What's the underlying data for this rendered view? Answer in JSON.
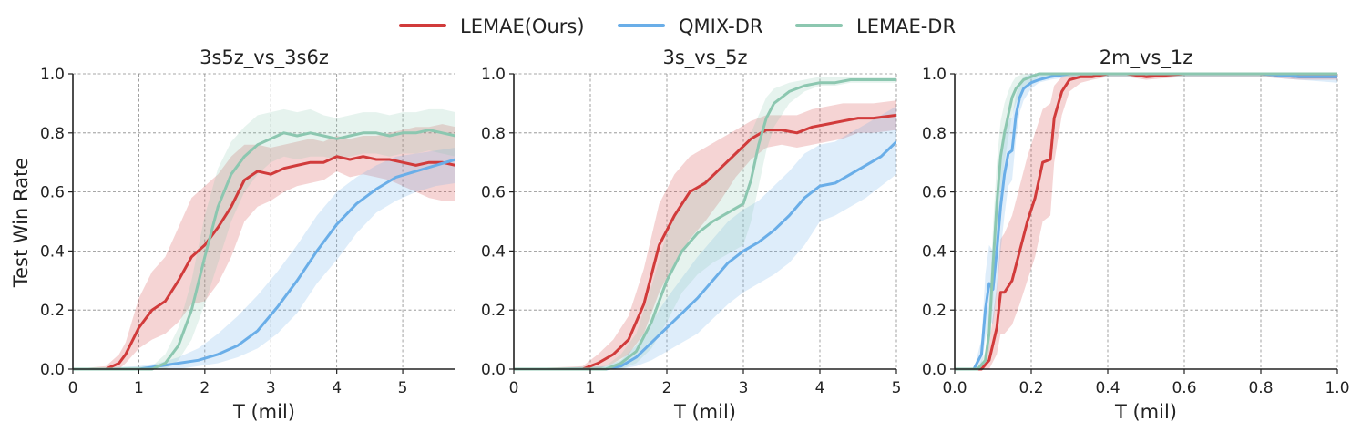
{
  "colors": {
    "LEMAE(Ours)": "#d13b3b",
    "QMIX-DR": "#6aaee8",
    "LEMAE-DR": "#8cc7b0"
  },
  "legend": [
    {
      "label": "LEMAE(Ours)",
      "color": "#d13b3b"
    },
    {
      "label": "QMIX-DR",
      "color": "#6aaee8"
    },
    {
      "label": "LEMAE-DR",
      "color": "#8cc7b0"
    }
  ],
  "chart_data": [
    {
      "type": "line",
      "title": "3s5z_vs_3s6z",
      "xlabel": "T (mil)",
      "ylabel": "Test Win Rate",
      "xlim": [
        0,
        5.8
      ],
      "ylim": [
        0,
        1.0
      ],
      "xticks": [
        0,
        1,
        2,
        3,
        4,
        5
      ],
      "xtick_labels": [
        "0",
        "1",
        "2",
        "3",
        "4",
        "5"
      ],
      "yticks": [
        0.0,
        0.2,
        0.4,
        0.6,
        0.8,
        1.0
      ],
      "ytick_labels": [
        "0.0",
        "0.2",
        "0.4",
        "0.6",
        "0.8",
        "1.0"
      ],
      "grid": true,
      "series": [
        {
          "name": "LEMAE(Ours)",
          "x": [
            0,
            0.5,
            0.7,
            0.8,
            1.0,
            1.2,
            1.4,
            1.6,
            1.8,
            2.0,
            2.2,
            2.4,
            2.6,
            2.8,
            3.0,
            3.2,
            3.4,
            3.6,
            3.8,
            4.0,
            4.2,
            4.4,
            4.6,
            4.8,
            5.0,
            5.2,
            5.4,
            5.6,
            5.8
          ],
          "mean": [
            0.0,
            0.0,
            0.02,
            0.05,
            0.14,
            0.2,
            0.23,
            0.3,
            0.38,
            0.42,
            0.48,
            0.55,
            0.64,
            0.67,
            0.66,
            0.68,
            0.69,
            0.7,
            0.7,
            0.72,
            0.71,
            0.72,
            0.71,
            0.71,
            0.7,
            0.69,
            0.7,
            0.7,
            0.69
          ],
          "lower": [
            0.0,
            0.0,
            0.0,
            0.02,
            0.07,
            0.1,
            0.12,
            0.16,
            0.22,
            0.23,
            0.29,
            0.38,
            0.5,
            0.55,
            0.57,
            0.6,
            0.62,
            0.63,
            0.64,
            0.67,
            0.65,
            0.66,
            0.65,
            0.64,
            0.62,
            0.6,
            0.58,
            0.57,
            0.57
          ],
          "upper": [
            0.0,
            0.01,
            0.05,
            0.09,
            0.24,
            0.33,
            0.38,
            0.48,
            0.58,
            0.62,
            0.66,
            0.72,
            0.76,
            0.76,
            0.75,
            0.76,
            0.77,
            0.78,
            0.77,
            0.79,
            0.78,
            0.79,
            0.79,
            0.8,
            0.81,
            0.82,
            0.82,
            0.83,
            0.82
          ]
        },
        {
          "name": "QMIX-DR",
          "x": [
            0,
            1.0,
            1.3,
            1.6,
            1.9,
            2.2,
            2.5,
            2.8,
            3.1,
            3.4,
            3.7,
            4.0,
            4.3,
            4.6,
            4.9,
            5.2,
            5.5,
            5.8
          ],
          "mean": [
            0.0,
            0.0,
            0.01,
            0.02,
            0.03,
            0.05,
            0.08,
            0.13,
            0.21,
            0.3,
            0.4,
            0.49,
            0.56,
            0.61,
            0.65,
            0.67,
            0.69,
            0.71
          ],
          "lower": [
            0.0,
            0.0,
            0.0,
            0.0,
            0.01,
            0.02,
            0.04,
            0.07,
            0.12,
            0.19,
            0.29,
            0.37,
            0.46,
            0.53,
            0.57,
            0.6,
            0.62,
            0.63
          ],
          "upper": [
            0.0,
            0.01,
            0.02,
            0.04,
            0.07,
            0.12,
            0.18,
            0.25,
            0.33,
            0.42,
            0.52,
            0.6,
            0.65,
            0.69,
            0.72,
            0.73,
            0.74,
            0.75
          ]
        },
        {
          "name": "LEMAE-DR",
          "x": [
            0,
            1.2,
            1.4,
            1.6,
            1.8,
            2.0,
            2.2,
            2.4,
            2.6,
            2.8,
            3.0,
            3.2,
            3.4,
            3.6,
            3.8,
            4.0,
            4.2,
            4.4,
            4.6,
            4.8,
            5.0,
            5.2,
            5.4,
            5.6,
            5.8
          ],
          "mean": [
            0.0,
            0.0,
            0.02,
            0.08,
            0.2,
            0.38,
            0.55,
            0.66,
            0.72,
            0.76,
            0.78,
            0.8,
            0.79,
            0.8,
            0.79,
            0.78,
            0.79,
            0.8,
            0.8,
            0.79,
            0.8,
            0.8,
            0.81,
            0.8,
            0.79
          ],
          "lower": [
            0.0,
            0.0,
            0.0,
            0.03,
            0.1,
            0.22,
            0.36,
            0.5,
            0.6,
            0.66,
            0.7,
            0.72,
            0.71,
            0.72,
            0.72,
            0.71,
            0.72,
            0.73,
            0.73,
            0.72,
            0.73,
            0.73,
            0.74,
            0.73,
            0.72
          ],
          "upper": [
            0.0,
            0.01,
            0.05,
            0.14,
            0.3,
            0.52,
            0.68,
            0.77,
            0.82,
            0.86,
            0.87,
            0.88,
            0.87,
            0.88,
            0.86,
            0.85,
            0.86,
            0.87,
            0.87,
            0.86,
            0.87,
            0.87,
            0.88,
            0.88,
            0.87
          ]
        }
      ]
    },
    {
      "type": "line",
      "title": "3s_vs_5z",
      "xlabel": "T (mil)",
      "xlim": [
        0,
        5.0
      ],
      "ylim": [
        0,
        1.0
      ],
      "xticks": [
        0,
        1,
        2,
        3,
        4,
        5
      ],
      "xtick_labels": [
        "0",
        "1",
        "2",
        "3",
        "4",
        "5"
      ],
      "yticks": [
        0.0,
        0.2,
        0.4,
        0.6,
        0.8,
        1.0
      ],
      "ytick_labels": [
        "0.0",
        "0.2",
        "0.4",
        "0.6",
        "0.8",
        "1.0"
      ],
      "grid": true,
      "series": [
        {
          "name": "LEMAE(Ours)",
          "x": [
            0,
            0.9,
            1.1,
            1.3,
            1.5,
            1.7,
            1.9,
            2.1,
            2.3,
            2.5,
            2.7,
            2.9,
            3.1,
            3.3,
            3.5,
            3.7,
            3.9,
            4.1,
            4.3,
            4.5,
            4.7,
            5.0
          ],
          "mean": [
            0.0,
            0.0,
            0.02,
            0.05,
            0.1,
            0.22,
            0.42,
            0.52,
            0.6,
            0.63,
            0.68,
            0.73,
            0.78,
            0.81,
            0.81,
            0.8,
            0.82,
            0.83,
            0.84,
            0.85,
            0.85,
            0.86
          ],
          "lower": [
            0.0,
            0.0,
            0.0,
            0.02,
            0.05,
            0.12,
            0.26,
            0.36,
            0.44,
            0.5,
            0.57,
            0.65,
            0.71,
            0.75,
            0.76,
            0.75,
            0.76,
            0.77,
            0.78,
            0.8,
            0.8,
            0.81
          ],
          "upper": [
            0.0,
            0.01,
            0.05,
            0.1,
            0.18,
            0.34,
            0.56,
            0.66,
            0.72,
            0.75,
            0.78,
            0.81,
            0.84,
            0.86,
            0.86,
            0.86,
            0.88,
            0.89,
            0.9,
            0.9,
            0.9,
            0.91
          ]
        },
        {
          "name": "QMIX-DR",
          "x": [
            0,
            1.2,
            1.4,
            1.6,
            1.8,
            2.0,
            2.2,
            2.4,
            2.6,
            2.8,
            3.0,
            3.2,
            3.4,
            3.6,
            3.8,
            4.0,
            4.2,
            4.4,
            4.6,
            4.8,
            5.0
          ],
          "mean": [
            0.0,
            0.0,
            0.01,
            0.04,
            0.09,
            0.14,
            0.19,
            0.24,
            0.3,
            0.36,
            0.4,
            0.43,
            0.47,
            0.52,
            0.58,
            0.62,
            0.63,
            0.66,
            0.69,
            0.72,
            0.77
          ],
          "lower": [
            0.0,
            0.0,
            0.0,
            0.01,
            0.03,
            0.06,
            0.09,
            0.12,
            0.17,
            0.22,
            0.26,
            0.29,
            0.32,
            0.36,
            0.42,
            0.5,
            0.52,
            0.55,
            0.58,
            0.62,
            0.66
          ],
          "upper": [
            0.0,
            0.01,
            0.03,
            0.08,
            0.16,
            0.24,
            0.31,
            0.38,
            0.44,
            0.5,
            0.54,
            0.57,
            0.62,
            0.67,
            0.73,
            0.76,
            0.77,
            0.8,
            0.83,
            0.86,
            0.89
          ]
        },
        {
          "name": "LEMAE-DR",
          "x": [
            0,
            1.2,
            1.4,
            1.6,
            1.8,
            2.0,
            2.2,
            2.4,
            2.6,
            2.8,
            3.0,
            3.1,
            3.2,
            3.3,
            3.4,
            3.6,
            3.8,
            4.0,
            4.2,
            4.4,
            4.6,
            4.8,
            5.0
          ],
          "mean": [
            0.0,
            0.0,
            0.02,
            0.06,
            0.16,
            0.3,
            0.4,
            0.46,
            0.5,
            0.53,
            0.56,
            0.64,
            0.76,
            0.85,
            0.9,
            0.94,
            0.96,
            0.97,
            0.97,
            0.98,
            0.98,
            0.98,
            0.98
          ],
          "lower": [
            0.0,
            0.0,
            0.0,
            0.02,
            0.07,
            0.16,
            0.26,
            0.32,
            0.36,
            0.39,
            0.42,
            0.5,
            0.62,
            0.74,
            0.82,
            0.9,
            0.94,
            0.96,
            0.96,
            0.97,
            0.97,
            0.97,
            0.97
          ],
          "upper": [
            0.0,
            0.01,
            0.05,
            0.12,
            0.28,
            0.46,
            0.56,
            0.62,
            0.66,
            0.7,
            0.75,
            0.8,
            0.86,
            0.92,
            0.95,
            0.97,
            0.98,
            0.99,
            0.99,
            0.99,
            0.99,
            0.99,
            0.99
          ]
        }
      ]
    },
    {
      "type": "line",
      "title": "2m_vs_1z",
      "xlabel": "T (mil)",
      "xlim": [
        0,
        1.0
      ],
      "ylim": [
        0,
        1.0
      ],
      "xticks": [
        0.0,
        0.2,
        0.4,
        0.6,
        0.8,
        1.0
      ],
      "xtick_labels": [
        "0.0",
        "0.2",
        "0.4",
        "0.6",
        "0.8",
        "1.0"
      ],
      "yticks": [
        0.0,
        0.2,
        0.4,
        0.6,
        0.8,
        1.0
      ],
      "ytick_labels": [
        "0.0",
        "0.2",
        "0.4",
        "0.6",
        "0.8",
        "1.0"
      ],
      "grid": true,
      "series": [
        {
          "name": "LEMAE(Ours)",
          "x": [
            0,
            0.07,
            0.09,
            0.11,
            0.12,
            0.13,
            0.15,
            0.17,
            0.19,
            0.21,
            0.23,
            0.25,
            0.26,
            0.28,
            0.3,
            0.33,
            0.36,
            0.4,
            0.45,
            0.5,
            0.6,
            0.7,
            0.8,
            0.9,
            1.0
          ],
          "mean": [
            0.0,
            0.0,
            0.03,
            0.14,
            0.26,
            0.26,
            0.3,
            0.4,
            0.5,
            0.58,
            0.7,
            0.71,
            0.85,
            0.94,
            0.98,
            0.99,
            0.99,
            1.0,
            1.0,
            0.99,
            1.0,
            1.0,
            1.0,
            0.99,
            0.99
          ],
          "lower": [
            0.0,
            0.0,
            0.0,
            0.05,
            0.12,
            0.12,
            0.15,
            0.22,
            0.3,
            0.38,
            0.5,
            0.52,
            0.7,
            0.86,
            0.94,
            0.97,
            0.98,
            0.99,
            0.99,
            0.98,
            0.99,
            0.99,
            0.99,
            0.98,
            0.98
          ],
          "upper": [
            0.0,
            0.0,
            0.08,
            0.28,
            0.44,
            0.46,
            0.52,
            0.62,
            0.72,
            0.8,
            0.88,
            0.9,
            0.96,
            0.99,
            1.0,
            1.0,
            1.0,
            1.0,
            1.0,
            1.0,
            1.0,
            1.0,
            1.0,
            1.0,
            1.0
          ]
        },
        {
          "name": "QMIX-DR",
          "x": [
            0,
            0.05,
            0.07,
            0.08,
            0.09,
            0.1,
            0.11,
            0.12,
            0.13,
            0.14,
            0.15,
            0.16,
            0.17,
            0.18,
            0.2,
            0.22,
            0.25,
            0.3,
            0.4,
            0.5,
            0.6,
            0.7,
            0.8,
            0.9,
            1.0
          ],
          "mean": [
            0.0,
            0.0,
            0.05,
            0.2,
            0.29,
            0.27,
            0.4,
            0.55,
            0.66,
            0.73,
            0.74,
            0.86,
            0.92,
            0.95,
            0.97,
            0.98,
            0.99,
            1.0,
            1.0,
            1.0,
            1.0,
            1.0,
            1.0,
            0.99,
            0.99
          ],
          "lower": [
            0.0,
            0.0,
            0.01,
            0.1,
            0.17,
            0.15,
            0.26,
            0.4,
            0.52,
            0.62,
            0.64,
            0.78,
            0.87,
            0.91,
            0.95,
            0.97,
            0.98,
            0.99,
            0.99,
            0.99,
            0.99,
            0.99,
            0.99,
            0.98,
            0.97
          ],
          "upper": [
            0.0,
            0.0,
            0.1,
            0.32,
            0.42,
            0.4,
            0.54,
            0.7,
            0.8,
            0.85,
            0.85,
            0.93,
            0.97,
            0.99,
            1.0,
            1.0,
            1.0,
            1.0,
            1.0,
            1.0,
            1.0,
            1.0,
            1.0,
            1.0,
            1.0
          ]
        },
        {
          "name": "LEMAE-DR",
          "x": [
            0,
            0.06,
            0.08,
            0.09,
            0.1,
            0.11,
            0.12,
            0.13,
            0.14,
            0.15,
            0.16,
            0.18,
            0.2,
            0.22,
            0.25,
            0.3,
            0.4,
            0.5,
            0.6,
            0.7,
            0.8,
            0.9,
            1.0
          ],
          "mean": [
            0.0,
            0.0,
            0.03,
            0.12,
            0.35,
            0.56,
            0.72,
            0.8,
            0.86,
            0.92,
            0.95,
            0.98,
            0.99,
            1.0,
            1.0,
            1.0,
            1.0,
            1.0,
            1.0,
            1.0,
            1.0,
            1.0,
            1.0
          ],
          "lower": [
            0.0,
            0.0,
            0.01,
            0.06,
            0.22,
            0.42,
            0.6,
            0.7,
            0.78,
            0.86,
            0.9,
            0.95,
            0.97,
            0.99,
            0.99,
            0.99,
            0.99,
            0.99,
            0.99,
            0.99,
            0.99,
            0.99,
            0.99
          ],
          "upper": [
            0.0,
            0.0,
            0.06,
            0.2,
            0.48,
            0.7,
            0.84,
            0.9,
            0.94,
            0.97,
            0.99,
            1.0,
            1.0,
            1.0,
            1.0,
            1.0,
            1.0,
            1.0,
            1.0,
            1.0,
            1.0,
            1.0,
            1.0
          ]
        }
      ]
    }
  ]
}
